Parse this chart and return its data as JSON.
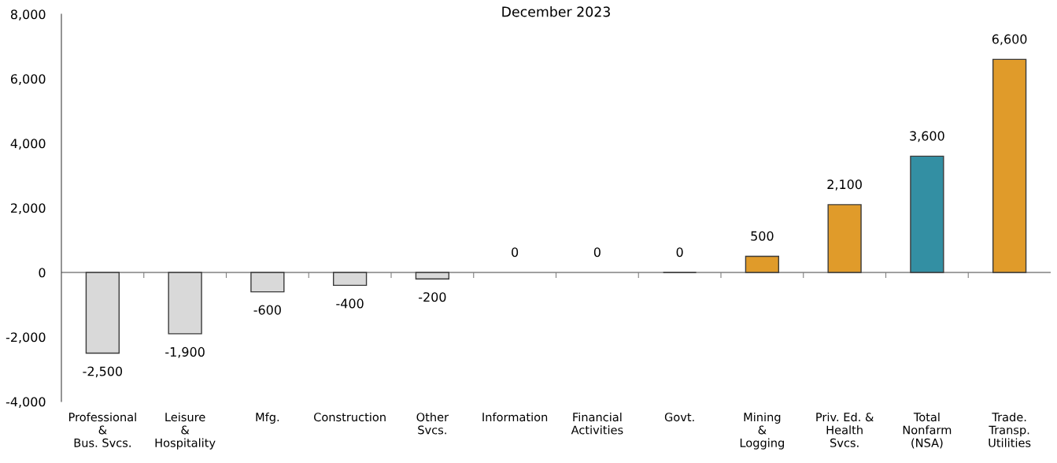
{
  "chart_data": {
    "type": "bar",
    "title": "December 2023",
    "categories": [
      "Professional\n&\nBus. Svcs.",
      "Leisure\n&\nHospitality",
      "Mfg.",
      "Construction",
      "Other\nSvcs.",
      "Information",
      "Financial\nActivities",
      "Govt.",
      "Mining\n&\nLogging",
      "Priv. Ed. &\nHealth\nSvcs.",
      "Total\nNonfarm\n(NSA)",
      "Trade.\nTransp.\nUtilities"
    ],
    "values": [
      -2500,
      -1900,
      -600,
      -400,
      -200,
      0,
      0,
      0,
      500,
      2100,
      3600,
      6600
    ],
    "colors": [
      "#d9d9d9",
      "#d9d9d9",
      "#d9d9d9",
      "#d9d9d9",
      "#d9d9d9",
      null,
      null,
      "#3a3a3a",
      "#e09b2a",
      "#e09b2a",
      "#338fa3",
      "#e09b2a"
    ],
    "value_labels": [
      "-2,500",
      "-1,900",
      "-600",
      "-400",
      "-200",
      "0",
      "0",
      "0",
      "500",
      "2,100",
      "3,600",
      "6,600"
    ],
    "ylim": [
      -4000,
      8000
    ],
    "yticks": [
      {
        "value": -4000,
        "label": "-4,000"
      },
      {
        "value": -2000,
        "label": "-2,000"
      },
      0,
      {
        "value": 2000,
        "label": "2,000"
      },
      {
        "value": 4000,
        "label": "4,000"
      },
      {
        "value": 6000,
        "label": "6,000"
      },
      {
        "value": 8000,
        "label": "8,000"
      }
    ],
    "ref_lines": [
      {
        "axis": "y",
        "value": 0,
        "color": "#808080"
      }
    ],
    "grid": false,
    "legend": false
  }
}
